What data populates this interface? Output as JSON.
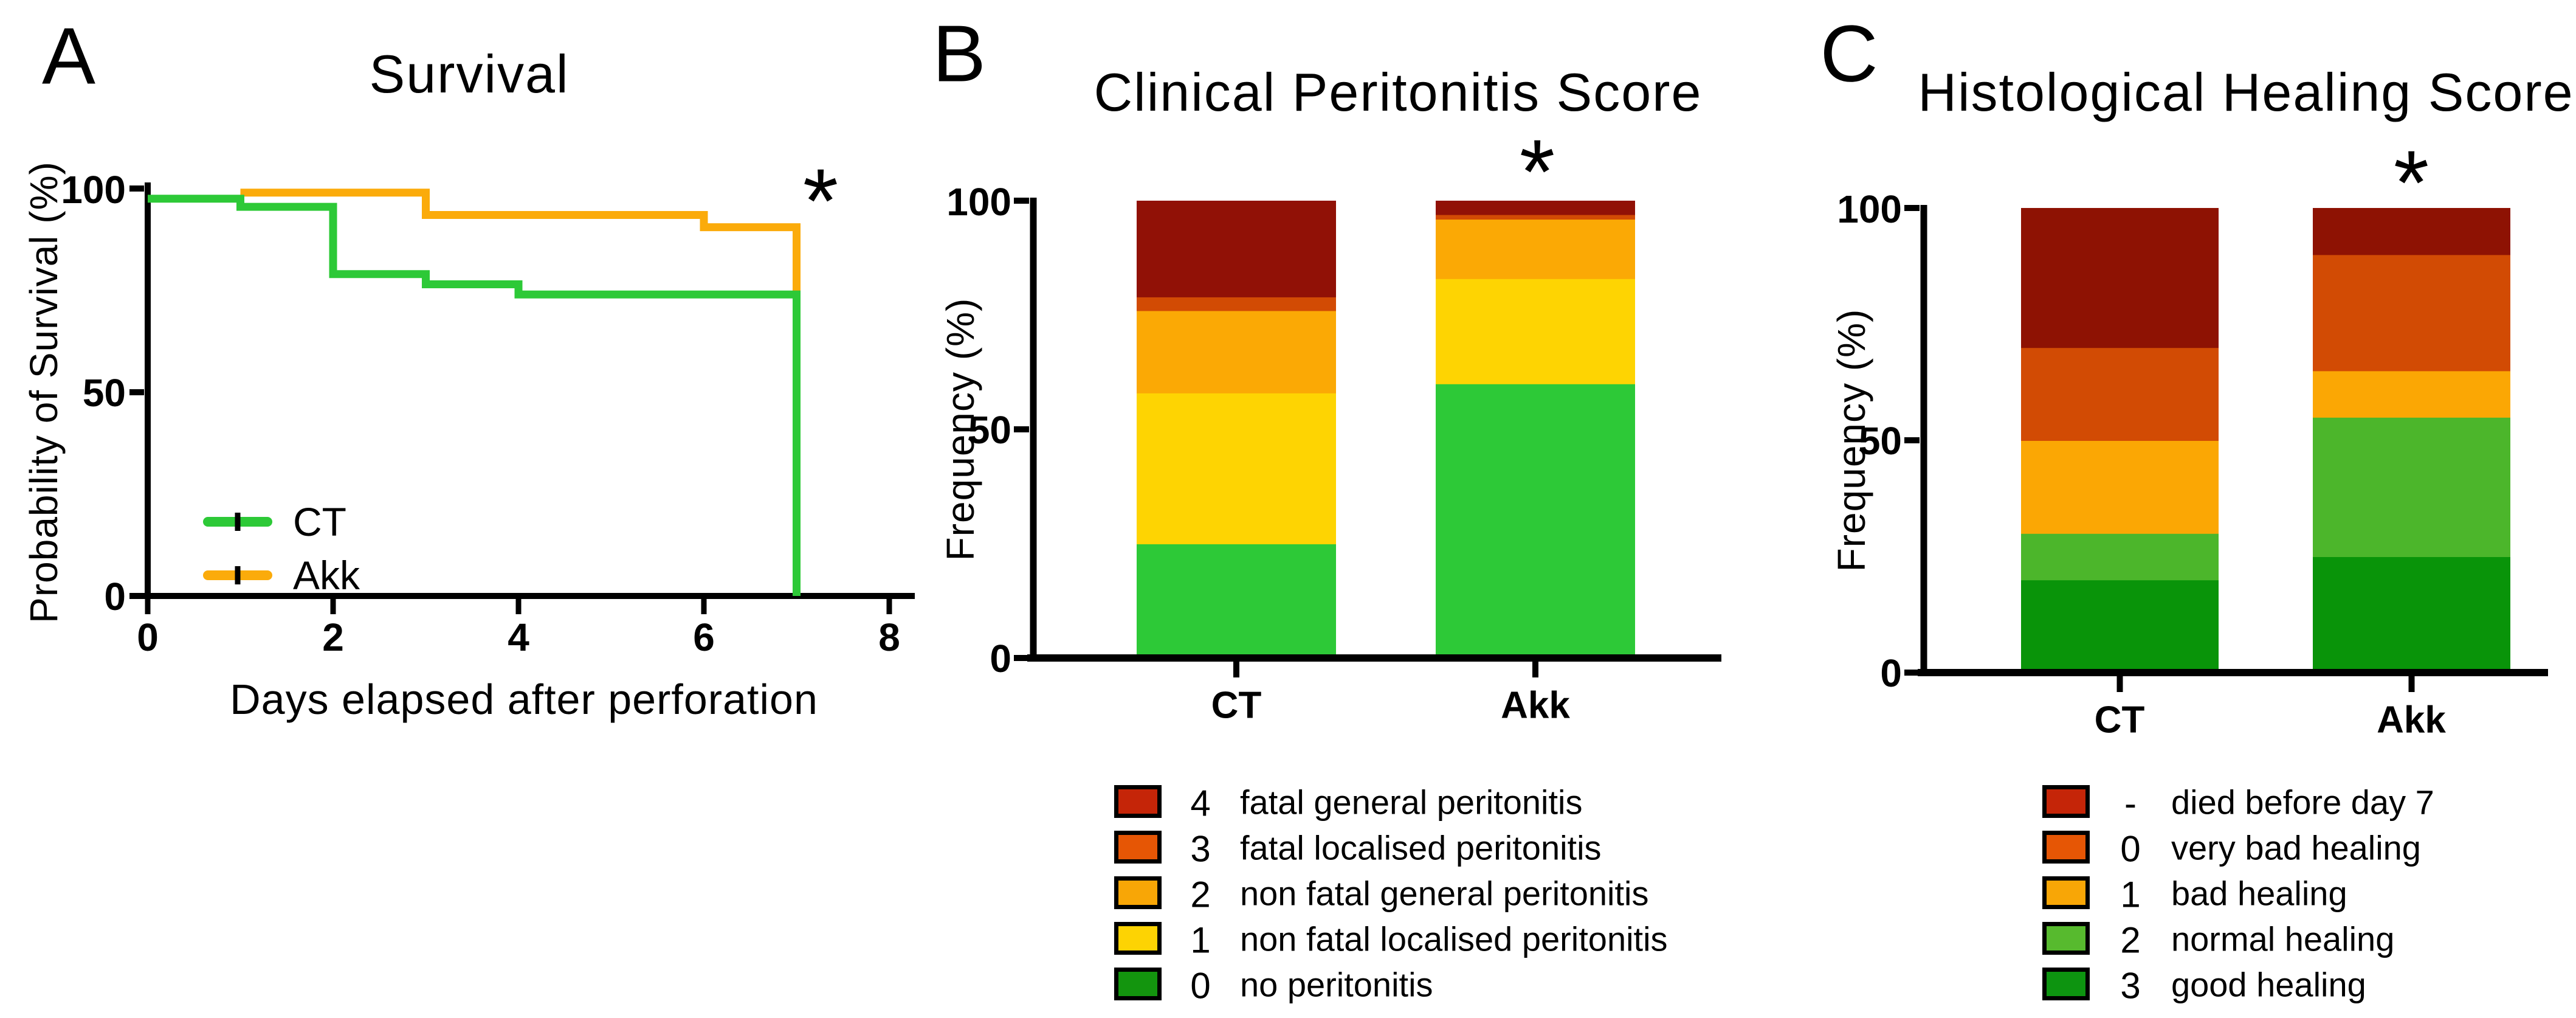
{
  "panels": {
    "A": {
      "letter": "A"
    },
    "B": {
      "letter": "B"
    },
    "C": {
      "letter": "C"
    }
  },
  "chart_data": [
    {
      "type": "line",
      "variant": "kaplan-meier-step",
      "title": "Survival",
      "xlabel": "Days elapsed after perforation",
      "ylabel": "Probability of Survival (%)",
      "xlim": [
        0,
        8
      ],
      "ylim": [
        0,
        100
      ],
      "xticks": [
        "0",
        "2",
        "4",
        "6",
        "8"
      ],
      "yticks": [
        "100",
        "50",
        "0"
      ],
      "grid": false,
      "legend_position": "inside-lower-left",
      "significance": "*",
      "series": [
        {
          "name": "CT",
          "color": "#2dc937",
          "censor_tick_color": "#000000",
          "steps": [
            [
              0,
              97.5
            ],
            [
              1,
              97.5
            ],
            [
              1,
              95.5
            ],
            [
              2,
              95.5
            ],
            [
              2,
              79
            ],
            [
              3,
              79
            ],
            [
              3,
              76.5
            ],
            [
              4,
              76.5
            ],
            [
              4,
              74
            ],
            [
              7,
              74
            ],
            [
              7,
              0
            ]
          ]
        },
        {
          "name": "Akk",
          "color": "#fbab0b",
          "censor_tick_color": "#000000",
          "steps": [
            [
              1,
              99
            ],
            [
              3,
              99
            ],
            [
              3,
              93.5
            ],
            [
              6,
              93.5
            ],
            [
              6,
              90.5
            ],
            [
              7,
              90.5
            ],
            [
              7,
              74.5
            ]
          ]
        }
      ]
    },
    {
      "type": "bar",
      "variant": "stacked-percent",
      "title": "Clinical Peritonitis Score",
      "ylabel": "Frequency (%)",
      "ylim": [
        0,
        100
      ],
      "yticks": [
        "100",
        "50",
        "0"
      ],
      "categories": [
        "CT",
        "Akk"
      ],
      "significance": "*",
      "significance_over": "Akk",
      "series": [
        {
          "key": "0",
          "label": "no peritonitis",
          "bar_color": "#2dc937",
          "legend_color": "#13950e",
          "values": [
            25,
            60
          ]
        },
        {
          "key": "1",
          "label": "non fatal localised peritonitis",
          "bar_color": "#fed402",
          "legend_color": "#fdd303",
          "values": [
            33,
            23
          ]
        },
        {
          "key": "2",
          "label": "non fatal general peritonitis",
          "bar_color": "#fba905",
          "legend_color": "#f8a606",
          "values": [
            18,
            13
          ]
        },
        {
          "key": "3",
          "label": "fatal localised peritonitis",
          "bar_color": "#d24b04",
          "legend_color": "#e65605",
          "values": [
            3,
            1
          ]
        },
        {
          "key": "4",
          "label": "fatal general peritonitis",
          "bar_color": "#911106",
          "legend_color": "#c52508",
          "values": [
            21,
            3
          ]
        }
      ]
    },
    {
      "type": "bar",
      "variant": "stacked-percent",
      "title": "Histological Healing Score",
      "ylabel": "Frequency (%)",
      "ylim": [
        0,
        100
      ],
      "yticks": [
        "100",
        "50",
        "0"
      ],
      "categories": [
        "CT",
        "Akk"
      ],
      "significance": "*",
      "significance_over": "Akk",
      "series": [
        {
          "key": "3",
          "label": "good healing",
          "bar_color": "#099409",
          "legend_color": "#0d9410",
          "values": [
            20,
            25
          ]
        },
        {
          "key": "2",
          "label": "normal healing",
          "bar_color": "#4cb62b",
          "legend_color": "#57ba2e",
          "values": [
            10,
            30
          ]
        },
        {
          "key": "1",
          "label": "bad healing",
          "bar_color": "#fba704",
          "legend_color": "#f8a606",
          "values": [
            20,
            10
          ]
        },
        {
          "key": "0",
          "label": "very bad healing",
          "bar_color": "#d24b04",
          "legend_color": "#e65605",
          "values": [
            20,
            25
          ]
        },
        {
          "key": "-",
          "label": "died before day 7",
          "bar_color": "#8e1203",
          "legend_color": "#c52508",
          "values": [
            30,
            10
          ]
        }
      ]
    }
  ]
}
